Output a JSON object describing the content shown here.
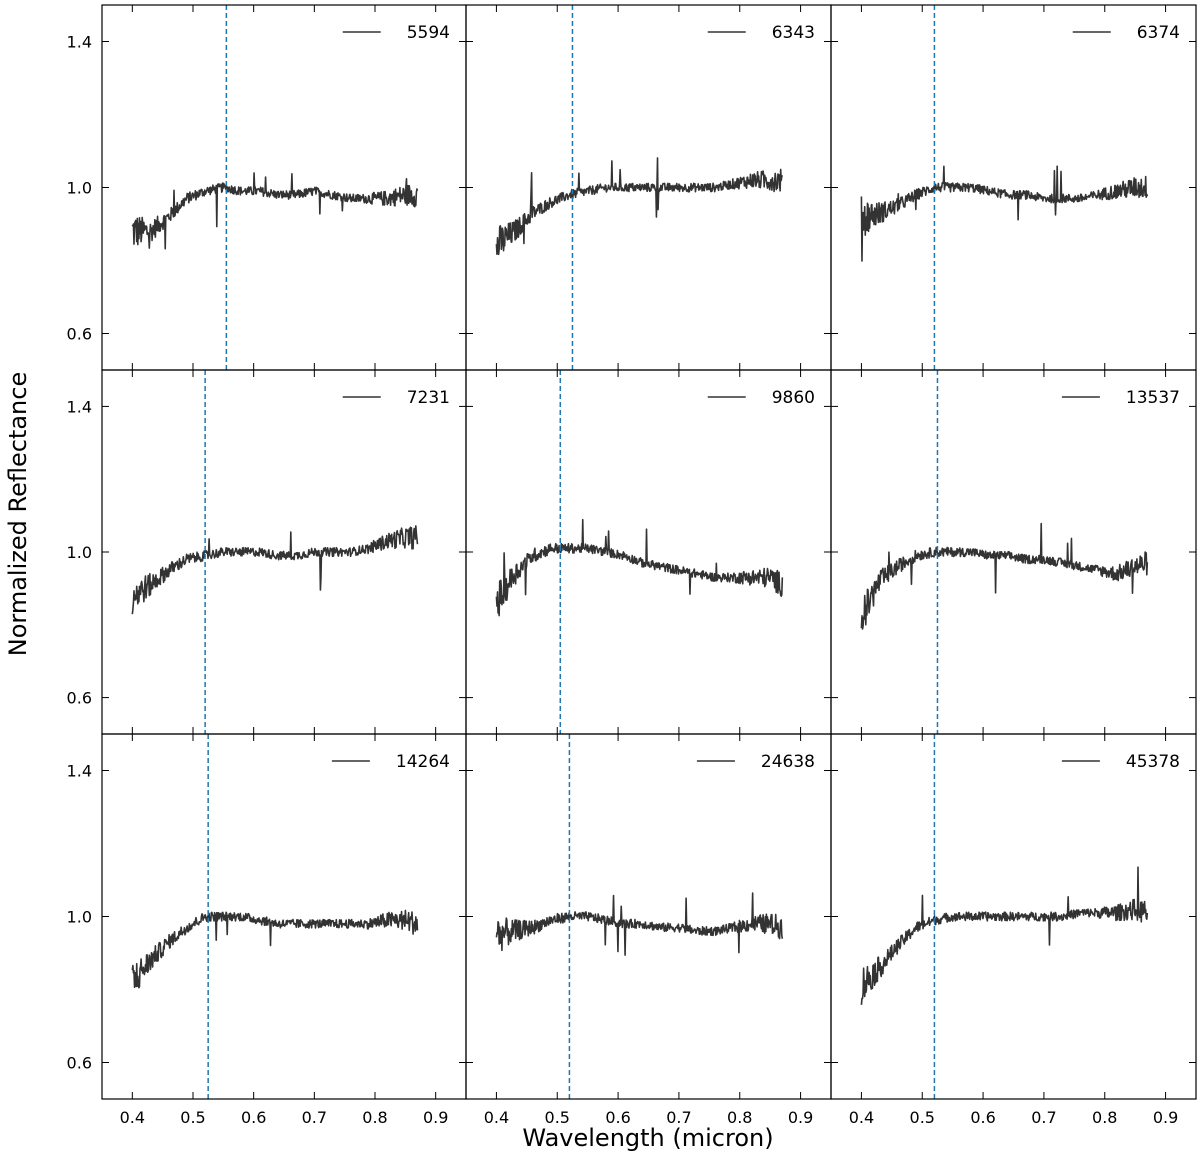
{
  "figure": {
    "xlabel": "Wavelength (micron)",
    "ylabel": "Normalized Reflectance"
  },
  "colors": {
    "spectrum": "#333333",
    "marker_line": "#1f77b4",
    "axes": "#000000"
  },
  "chart_data": {
    "type": "line",
    "layout": "3x3 grid, shared x and y axes",
    "xlim": [
      0.35,
      0.95
    ],
    "ylim": [
      0.5,
      1.5
    ],
    "xticks": [
      0.4,
      0.5,
      0.6,
      0.7,
      0.8,
      0.9
    ],
    "xtick_labels": [
      "0.4",
      "0.5",
      "0.6",
      "0.7",
      "0.8",
      "0.9"
    ],
    "yticks": [
      0.6,
      1.0,
      1.4
    ],
    "ytick_labels": [
      "0.6",
      "1.0",
      "1.4"
    ],
    "grid": false,
    "legend_position": "top-right",
    "x_range_of_spectra": [
      0.4,
      0.87
    ],
    "panels": [
      {
        "label": "5594",
        "vline_x": 0.555,
        "x": [
          0.4,
          0.43,
          0.46,
          0.49,
          0.52,
          0.55,
          0.58,
          0.61,
          0.64,
          0.67,
          0.7,
          0.73,
          0.76,
          0.79,
          0.82,
          0.85,
          0.87
        ],
        "y": [
          0.88,
          0.88,
          0.92,
          0.97,
          0.99,
          1.0,
          0.99,
          0.99,
          0.98,
          0.98,
          0.99,
          0.98,
          0.97,
          0.97,
          0.97,
          0.98,
          0.98
        ]
      },
      {
        "label": "6343",
        "vline_x": 0.525,
        "x": [
          0.4,
          0.43,
          0.46,
          0.49,
          0.52,
          0.55,
          0.58,
          0.61,
          0.64,
          0.67,
          0.7,
          0.73,
          0.76,
          0.79,
          0.82,
          0.85,
          0.87
        ],
        "y": [
          0.84,
          0.88,
          0.93,
          0.96,
          0.98,
          0.99,
          1.0,
          1.0,
          1.0,
          1.0,
          1.0,
          1.0,
          1.0,
          1.01,
          1.02,
          1.02,
          1.02
        ]
      },
      {
        "label": "6374",
        "vline_x": 0.52,
        "x": [
          0.4,
          0.43,
          0.46,
          0.49,
          0.52,
          0.55,
          0.58,
          0.61,
          0.64,
          0.67,
          0.7,
          0.73,
          0.76,
          0.79,
          0.82,
          0.85,
          0.87
        ],
        "y": [
          0.92,
          0.93,
          0.95,
          0.98,
          1.0,
          1.0,
          1.0,
          0.99,
          0.98,
          0.98,
          0.97,
          0.97,
          0.97,
          0.98,
          0.99,
          1.0,
          1.0
        ]
      },
      {
        "label": "7231",
        "vline_x": 0.52,
        "x": [
          0.4,
          0.43,
          0.46,
          0.49,
          0.52,
          0.55,
          0.58,
          0.61,
          0.64,
          0.67,
          0.7,
          0.73,
          0.76,
          0.79,
          0.82,
          0.85,
          0.87
        ],
        "y": [
          0.88,
          0.91,
          0.95,
          0.98,
          0.99,
          1.0,
          1.0,
          1.0,
          0.99,
          0.99,
          1.0,
          1.0,
          1.0,
          1.01,
          1.03,
          1.04,
          1.04
        ]
      },
      {
        "label": "9860",
        "vline_x": 0.505,
        "x": [
          0.4,
          0.43,
          0.46,
          0.49,
          0.52,
          0.55,
          0.58,
          0.61,
          0.64,
          0.67,
          0.7,
          0.73,
          0.76,
          0.79,
          0.82,
          0.85,
          0.87
        ],
        "y": [
          0.86,
          0.94,
          0.99,
          1.01,
          1.01,
          1.01,
          1.0,
          0.99,
          0.97,
          0.96,
          0.95,
          0.94,
          0.93,
          0.93,
          0.93,
          0.93,
          0.91
        ]
      },
      {
        "label": "13537",
        "vline_x": 0.525,
        "x": [
          0.4,
          0.43,
          0.46,
          0.49,
          0.52,
          0.55,
          0.58,
          0.61,
          0.64,
          0.67,
          0.7,
          0.73,
          0.76,
          0.79,
          0.82,
          0.85,
          0.87
        ],
        "y": [
          0.82,
          0.92,
          0.96,
          0.99,
          1.0,
          1.0,
          1.0,
          0.99,
          0.99,
          0.98,
          0.98,
          0.97,
          0.96,
          0.95,
          0.94,
          0.96,
          0.97
        ]
      },
      {
        "label": "14264",
        "vline_x": 0.525,
        "x": [
          0.4,
          0.43,
          0.46,
          0.49,
          0.52,
          0.55,
          0.58,
          0.61,
          0.64,
          0.67,
          0.7,
          0.73,
          0.76,
          0.79,
          0.82,
          0.85,
          0.87
        ],
        "y": [
          0.82,
          0.88,
          0.93,
          0.97,
          1.0,
          1.0,
          1.0,
          0.99,
          0.98,
          0.98,
          0.98,
          0.98,
          0.98,
          0.98,
          0.99,
          0.99,
          0.98
        ]
      },
      {
        "label": "24638",
        "vline_x": 0.52,
        "x": [
          0.4,
          0.43,
          0.46,
          0.49,
          0.52,
          0.55,
          0.58,
          0.61,
          0.64,
          0.67,
          0.7,
          0.73,
          0.76,
          0.79,
          0.82,
          0.85,
          0.87
        ],
        "y": [
          0.95,
          0.96,
          0.97,
          0.99,
          1.0,
          1.0,
          0.99,
          0.98,
          0.98,
          0.97,
          0.97,
          0.96,
          0.96,
          0.97,
          0.98,
          0.98,
          0.97
        ]
      },
      {
        "label": "45378",
        "vline_x": 0.52,
        "x": [
          0.4,
          0.43,
          0.46,
          0.49,
          0.52,
          0.55,
          0.58,
          0.61,
          0.64,
          0.67,
          0.7,
          0.73,
          0.76,
          0.79,
          0.82,
          0.85,
          0.87
        ],
        "y": [
          0.81,
          0.86,
          0.92,
          0.97,
          0.99,
          1.0,
          1.0,
          1.0,
          1.0,
          1.0,
          1.0,
          1.0,
          1.01,
          1.01,
          1.01,
          1.02,
          1.01
        ]
      }
    ]
  }
}
